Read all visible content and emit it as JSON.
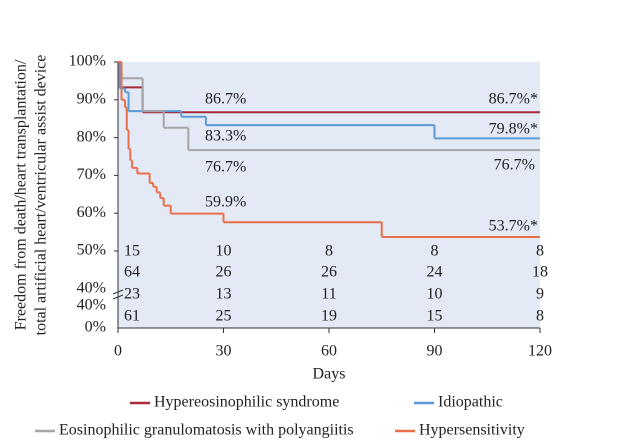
{
  "chart_data": {
    "type": "step",
    "ylabel": [
      "Freedom from death/heart transplantation/",
      "total artificial heart/ventricular assist device"
    ],
    "xlabel": "Days",
    "xlim": [
      0,
      120
    ],
    "xticks": [
      0,
      30,
      60,
      90,
      120
    ],
    "ylim": [
      50,
      100
    ],
    "yticks": [
      {
        "value": 50,
        "label": "50%"
      },
      {
        "value": 60,
        "label": "60%"
      },
      {
        "value": 70,
        "label": "70%"
      },
      {
        "value": 80,
        "label": "80%"
      },
      {
        "value": 90,
        "label": "90%"
      },
      {
        "value": 100,
        "label": "100%"
      }
    ],
    "lower_axis_labels": [
      "40%",
      "40%",
      "0%"
    ],
    "background": "#e3e9f5",
    "series": [
      {
        "name": "Hypereosinophilic syndrome",
        "color": "#a8283c",
        "x": [
          0,
          0.5,
          7,
          120
        ],
        "values": [
          100,
          93.3,
          86.7,
          86.7
        ],
        "at_risk": [
          15,
          10,
          8,
          8,
          8
        ]
      },
      {
        "name": "Idiopathic",
        "color": "#5b9bd5",
        "x": [
          0,
          0.5,
          2,
          3,
          18,
          25,
          90,
          120
        ],
        "values": [
          100,
          93,
          92,
          87,
          85.5,
          83.3,
          79.8,
          79.8
        ],
        "at_risk": [
          64,
          26,
          26,
          24,
          18
        ]
      },
      {
        "name": "Eosinophilic granulomatosis with polyangiitis",
        "color": "#a5a5a5",
        "x": [
          0,
          1,
          7,
          13,
          20,
          120
        ],
        "values": [
          100,
          95.7,
          87,
          82.6,
          76.7,
          76.7
        ],
        "at_risk": [
          23,
          13,
          11,
          10,
          9
        ]
      },
      {
        "name": "Hypersensitivity",
        "color": "#e8704a",
        "x": [
          0,
          1,
          2,
          2.5,
          3,
          3.5,
          4,
          5.5,
          9,
          10,
          11,
          12,
          13,
          15,
          30,
          75,
          120
        ],
        "values": [
          100,
          90,
          88,
          82,
          77,
          74,
          72,
          70.5,
          68,
          67,
          65.5,
          64,
          62,
          59.9,
          57.6,
          53.7,
          53.7
        ],
        "at_risk": [
          61,
          25,
          19,
          15,
          8
        ]
      }
    ],
    "annotations": [
      "86.7%",
      "86.7%*",
      "83.3%",
      "79.8%*",
      "76.7%",
      "76.7%",
      "59.9%",
      "53.7%*"
    ]
  }
}
